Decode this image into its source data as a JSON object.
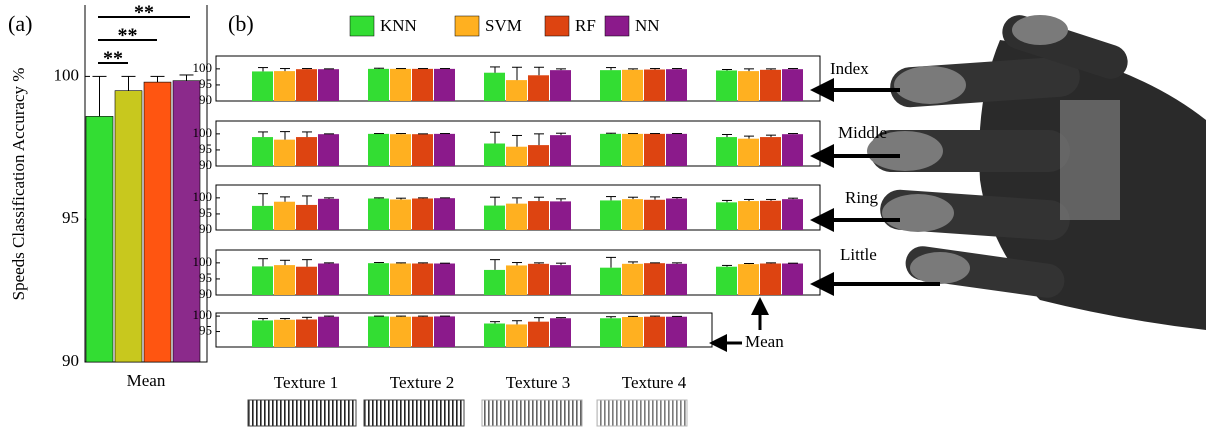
{
  "chart_data": [
    {
      "type": "bar",
      "panel_label": "(a)",
      "ylabel": "Speeds Classification Accuracy %",
      "categories": [
        "Mean"
      ],
      "ylim": [
        90,
        102.5
      ],
      "yticks": [
        90,
        95,
        100
      ],
      "series": [
        {
          "color": "#33dd33",
          "values": [
            98.6
          ],
          "errors": [
            1.4
          ]
        },
        {
          "color": "#c8c81e",
          "values": [
            99.5
          ],
          "errors": [
            0.5
          ]
        },
        {
          "color": "#ff5511",
          "values": [
            99.8
          ],
          "errors": [
            0.2
          ]
        },
        {
          "color": "#8b2a8b",
          "values": [
            99.85
          ],
          "errors": [
            0.2
          ]
        }
      ],
      "annotations": [
        "**",
        "**",
        "**"
      ]
    },
    {
      "type": "bar-grid",
      "panel_label": "(b)",
      "categories": [
        "Texture 1",
        "Texture 2",
        "Texture 3",
        "Texture 4",
        null
      ],
      "series": [
        {
          "name": "KNN",
          "color": "#33dd33"
        },
        {
          "name": "SVM",
          "color": "#ffb020"
        },
        {
          "name": "RF",
          "color": "#dd4411"
        },
        {
          "name": "NN",
          "color": "#8b1a8b"
        }
      ],
      "rows": [
        {
          "label": "Index",
          "ylim": [
            90,
            104
          ],
          "yticks": [
            90,
            95,
            100
          ],
          "values": [
            [
              99.2,
              99.3,
              99.9,
              99.9
            ],
            [
              100,
              100,
              100,
              100
            ],
            [
              98.8,
              96.5,
              98,
              99.6
            ],
            [
              99.6,
              99.7,
              99.8,
              99.9
            ],
            [
              99.5,
              99.3,
              99.7,
              99.9
            ]
          ],
          "errors": [
            [
              1.2,
              0.8,
              0.2,
              0.1
            ],
            [
              0.2,
              0.1,
              0.1,
              0.1
            ],
            [
              1.8,
              4,
              2.5,
              0.4
            ],
            [
              0.8,
              0.3,
              0.3,
              0.2
            ],
            [
              0.3,
              0.7,
              0.3,
              0.2
            ]
          ]
        },
        {
          "label": "Middle",
          "ylim": [
            90,
            104
          ],
          "yticks": [
            90,
            95,
            100
          ],
          "values": [
            [
              99,
              98.2,
              99,
              99.9
            ],
            [
              100,
              99.9,
              99.9,
              100
            ],
            [
              97,
              96,
              96.5,
              99.6
            ],
            [
              100,
              100,
              100,
              100
            ],
            [
              99,
              98.5,
              99,
              99.9
            ]
          ],
          "errors": [
            [
              1.6,
              2.5,
              1.6,
              0.1
            ],
            [
              0.1,
              0.2,
              0.1,
              0.1
            ],
            [
              3.5,
              3.5,
              3.5,
              0.6
            ],
            [
              0.2,
              0.1,
              0.1,
              0.1
            ],
            [
              0.8,
              0.8,
              0.6,
              0.2
            ]
          ]
        },
        {
          "label": "Ring",
          "ylim": [
            90,
            104
          ],
          "yticks": [
            90,
            95,
            100
          ],
          "values": [
            [
              97.5,
              98.8,
              97.8,
              99.7
            ],
            [
              99.8,
              99.5,
              99.8,
              99.9
            ],
            [
              97.6,
              98.2,
              99,
              98.9
            ],
            [
              99.2,
              99.6,
              99.4,
              99.8
            ],
            [
              98.6,
              99,
              99.1,
              99.6
            ]
          ],
          "errors": [
            [
              3.8,
              1.5,
              2.8,
              0.3
            ],
            [
              0.2,
              0.4,
              0.2,
              0.1
            ],
            [
              2.6,
              1.8,
              1.2,
              0.8
            ],
            [
              1.2,
              0.6,
              0.9,
              0.3
            ],
            [
              0.6,
              0.5,
              0.4,
              0.3
            ]
          ]
        },
        {
          "label": "Little",
          "ylim": [
            90,
            104
          ],
          "yticks": [
            90,
            95,
            100
          ],
          "values": [
            [
              98.9,
              99.3,
              98.8,
              99.8
            ],
            [
              99.9,
              99.8,
              99.8,
              99.8
            ],
            [
              97.8,
              99.2,
              99.7,
              99.3
            ],
            [
              98.5,
              99.7,
              99.9,
              99.7
            ],
            [
              98.8,
              99.6,
              99.8,
              99.8
            ]
          ],
          "errors": [
            [
              2.4,
              1.5,
              2.2,
              0.2
            ],
            [
              0.2,
              0.2,
              0.2,
              0.1
            ],
            [
              3.2,
              0.9,
              0.3,
              0.6
            ],
            [
              3.2,
              0.6,
              0.1,
              0.3
            ],
            [
              0.4,
              0.2,
              0.2,
              0.1
            ]
          ]
        },
        {
          "label": "Mean",
          "ylim": [
            90,
            101
          ],
          "yticks": [
            95,
            100
          ],
          "values": [
            [
              98.6,
              98.8,
              98.9,
              99.8
            ],
            [
              99.9,
              99.8,
              99.8,
              99.9
            ],
            [
              97.6,
              97.3,
              98.2,
              99.3
            ],
            [
              99.3,
              99.7,
              99.8,
              99.8
            ]
          ],
          "errors": [
            [
              0.6,
              0.4,
              0.7,
              0.2
            ],
            [
              0.1,
              0.2,
              0.2,
              0.1
            ],
            [
              0.6,
              1.2,
              1.3,
              0.2
            ],
            [
              0.5,
              0.2,
              0.2,
              0.1
            ]
          ]
        }
      ]
    }
  ]
}
